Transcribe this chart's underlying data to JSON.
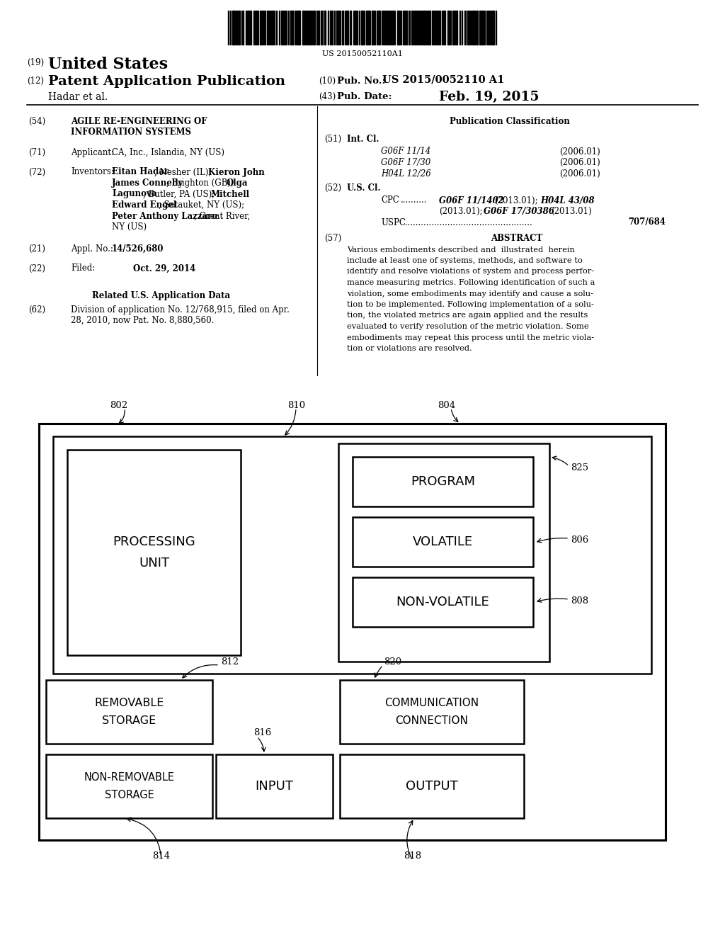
{
  "bg_color": "#ffffff",
  "barcode_text": "US 20150052110A1",
  "header": {
    "number_19": "(19)",
    "us_text": "United States",
    "number_12": "(12)",
    "patent_pub": "Patent Application Publication",
    "number_10": "(10)",
    "pub_no_label": "Pub. No.:",
    "pub_no_val": "US 2015/0052110 A1",
    "hadar_et_al": "Hadar et al.",
    "number_43": "(43)",
    "pub_date_label": "Pub. Date:",
    "pub_date_val": "Feb. 19, 2015"
  },
  "left_col": {
    "num54": "(54)",
    "title_line1": "AGILE RE-ENGINEERING OF",
    "title_line2": "INFORMATION SYSTEMS",
    "num71": "(71)",
    "applicant_label": "Applicant:",
    "applicant_val": "CA, Inc., Islandia, NY (US)",
    "num72": "(72)",
    "inventors_label": "Inventors:",
    "inv_line1": "Eitan Hadar, Nesher (IL); Kieron John",
    "inv_line2": "James Connelly, Brighton (GB); Olga",
    "inv_line3": "Lagunova, Butler, PA (US); Mitchell",
    "inv_line4": "Edward Engel, Setauket, NY (US);",
    "inv_line5": "Peter Anthony Lazzaro, Great River,",
    "inv_line6": "NY (US)",
    "num21": "(21)",
    "appl_no_label": "Appl. No.:",
    "appl_no_val": "14/526,680",
    "num22": "(22)",
    "filed_label": "Filed:",
    "filed_val": "Oct. 29, 2014",
    "related_title": "Related U.S. Application Data",
    "num62": "(62)",
    "related_line1": "Division of application No. 12/768,915, filed on Apr.",
    "related_line2": "28, 2010, now Pat. No. 8,880,560."
  },
  "right_col": {
    "pub_class_title": "Publication Classification",
    "num51": "(51)",
    "int_cl_label": "Int. Cl.",
    "int_cl_1_code": "G06F 11/14",
    "int_cl_1_year": "(2006.01)",
    "int_cl_2_code": "G06F 17/30",
    "int_cl_2_year": "(2006.01)",
    "int_cl_3_code": "H04L 12/26",
    "int_cl_3_year": "(2006.01)",
    "num52": "(52)",
    "us_cl_label": "U.S. Cl.",
    "cpc_label": "CPC",
    "cpc_dots": "  ..........",
    "cpc_code1": "G06F 11/1402",
    "cpc_year1": "(2013.01);",
    "cpc_code2": "H04L 43/08",
    "cpc_year2_code3": "(2013.01);",
    "cpc_code3": "G06F 17/30386",
    "cpc_year3": "(2013.01)",
    "uspc_label": "USPC",
    "uspc_val": "707/684",
    "num57": "(57)",
    "abstract_title": "ABSTRACT",
    "abstract_line1": "Various embodiments described and  illustrated  herein",
    "abstract_line2": "include at least one of systems, methods, and software to",
    "abstract_line3": "identify and resolve violations of system and process perfor-",
    "abstract_line4": "mance measuring metrics. Following identification of such a",
    "abstract_line5": "violation, some embodiments may identify and cause a solu-",
    "abstract_line6": "tion to be implemented. Following implementation of a solu-",
    "abstract_line7": "tion, the violated metrics are again applied and the results",
    "abstract_line8": "evaluated to verify resolution of the metric violation. Some",
    "abstract_line9": "embodiments may repeat this process until the metric viola-",
    "abstract_line10": "tion or violations are resolved."
  }
}
